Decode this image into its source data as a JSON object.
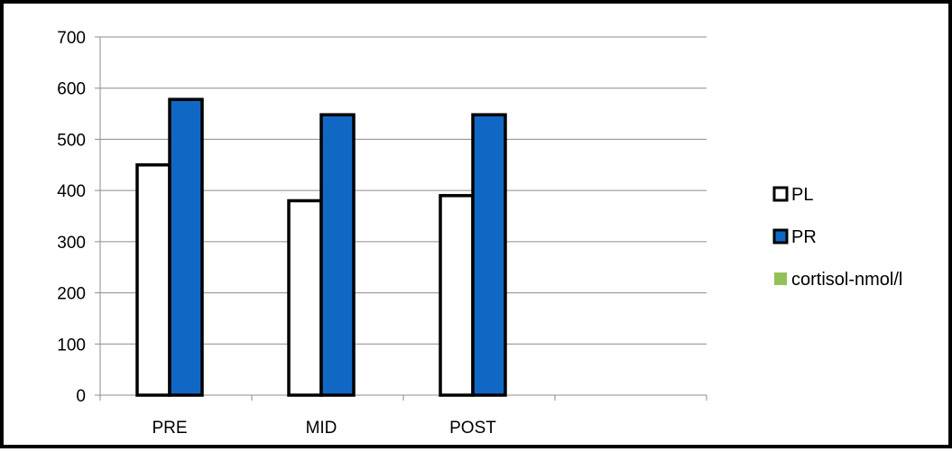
{
  "chart_data": {
    "type": "bar",
    "title": "",
    "xlabel": "",
    "ylabel": "",
    "categories": [
      "PRE",
      "MID",
      "POST"
    ],
    "category_slots": 4,
    "ylim": [
      0,
      700
    ],
    "yticks": [
      0,
      100,
      200,
      300,
      400,
      500,
      600,
      700
    ],
    "grid": true,
    "legend_position": "right",
    "series": [
      {
        "name": "PL",
        "values": [
          450,
          380,
          390
        ],
        "color": "#ffffff",
        "stroke": "#000000"
      },
      {
        "name": "PR",
        "values": [
          578,
          548,
          548
        ],
        "color": "#1168c4",
        "stroke": "#000000"
      },
      {
        "name": "cortisol-nmol/l",
        "values": [
          0,
          0,
          0
        ],
        "color": "#92c257",
        "stroke": "#92c257"
      }
    ]
  }
}
